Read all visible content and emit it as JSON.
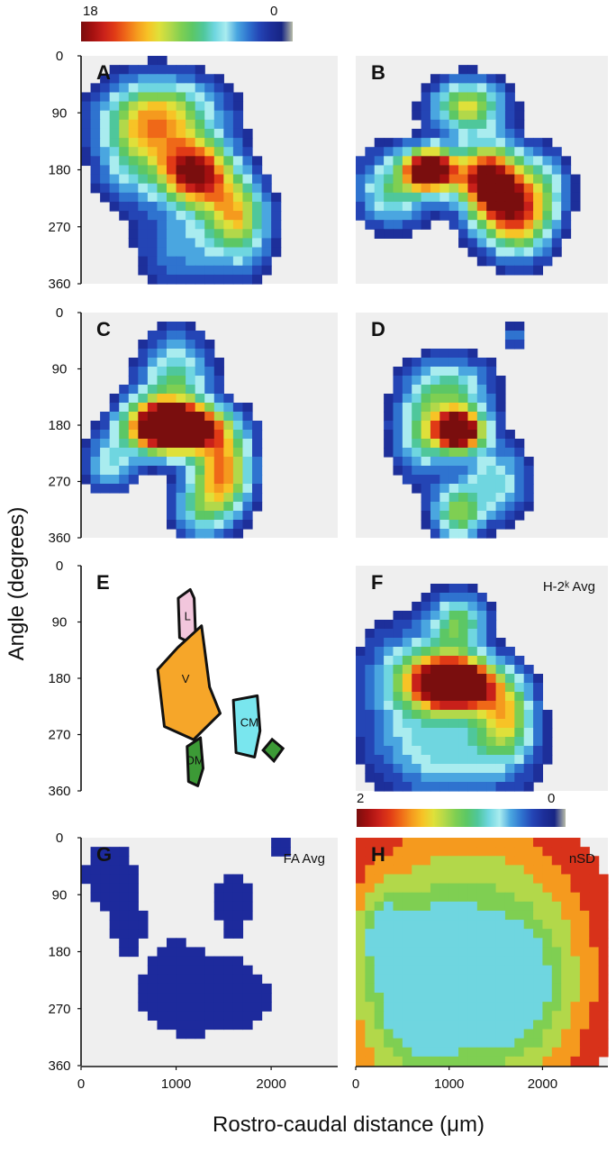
{
  "chart_data": {
    "type": "heatmap",
    "xlabel": "Rostro-caudal distance (μm)",
    "ylabel": "Angle (degrees)",
    "colorbars": [
      {
        "max_label": "18",
        "min_label": "0",
        "min": 0,
        "max": 18
      },
      {
        "max_label": "2",
        "min_label": "0",
        "min": 0,
        "max": 2
      }
    ],
    "xticks": [
      "0",
      "1000",
      "2000"
    ],
    "yticks": [
      "0",
      "90",
      "180",
      "270",
      "360"
    ],
    "xlim": [
      0,
      2700
    ],
    "ylim": [
      0,
      360
    ],
    "palette": [
      "#7a0e0e",
      "#a31010",
      "#c8201a",
      "#e03a16",
      "#ef6818",
      "#f59a1e",
      "#f7c326",
      "#dfe03a",
      "#b2d84a",
      "#7fcf52",
      "#5cc765",
      "#4fc79b",
      "#6fd6e0",
      "#a9ecef",
      "#4aa6e0",
      "#2f73cf",
      "#2445b5",
      "#1d2f9a",
      "#172584",
      "#b8bca8"
    ],
    "panels": [
      {
        "id": "A",
        "peak_x": 1200,
        "peak_y": 185,
        "peak": 18,
        "blobs": [
          [
            1200,
            185,
            18,
            260,
            35
          ],
          [
            700,
            120,
            8,
            330,
            45
          ],
          [
            900,
            90,
            7,
            420,
            40
          ],
          [
            1600,
            240,
            9,
            220,
            35
          ],
          [
            1700,
            290,
            5,
            200,
            40
          ],
          [
            1100,
            300,
            4,
            330,
            45
          ],
          [
            500,
            190,
            3,
            230,
            40
          ]
        ]
      },
      {
        "id": "B",
        "peak_x": 800,
        "peak_y": 180,
        "peak": 10,
        "blobs": [
          [
            800,
            180,
            13,
            180,
            22
          ],
          [
            1400,
            190,
            9,
            240,
            35
          ],
          [
            1600,
            240,
            7,
            250,
            40
          ],
          [
            1200,
            80,
            6,
            260,
            28
          ],
          [
            400,
            210,
            4,
            260,
            40
          ],
          [
            1800,
            270,
            3,
            220,
            40
          ],
          [
            2000,
            210,
            3,
            200,
            40
          ]
        ]
      },
      {
        "id": "C",
        "peak_x": 1100,
        "peak_y": 185,
        "peak": 10,
        "blobs": [
          [
            1100,
            185,
            12,
            300,
            25
          ],
          [
            800,
            180,
            8,
            250,
            30
          ],
          [
            1500,
            250,
            7,
            200,
            40
          ],
          [
            1000,
            100,
            4,
            250,
            45
          ],
          [
            1300,
            310,
            4,
            220,
            35
          ],
          [
            300,
            240,
            3,
            180,
            30
          ]
        ]
      },
      {
        "id": "D",
        "peak_x": 1100,
        "peak_y": 190,
        "peak": 12,
        "blobs": [
          [
            1100,
            190,
            15,
            180,
            22
          ],
          [
            1000,
            130,
            5,
            300,
            40
          ],
          [
            1500,
            270,
            4,
            240,
            40
          ],
          [
            1100,
            320,
            6,
            180,
            30
          ],
          [
            700,
            200,
            4,
            200,
            45
          ],
          [
            1700,
            40,
            2,
            90,
            15
          ]
        ]
      },
      {
        "id": "F",
        "annotation": "H-2ᵏ Avg",
        "peak_x": 1100,
        "peak_y": 190,
        "peak": 14,
        "blobs": [
          [
            1100,
            190,
            16,
            260,
            25
          ],
          [
            900,
            180,
            8,
            340,
            35
          ],
          [
            1600,
            240,
            8,
            200,
            45
          ],
          [
            1100,
            90,
            6,
            200,
            30
          ],
          [
            1100,
            300,
            4,
            500,
            50
          ],
          [
            600,
            200,
            3,
            400,
            80
          ]
        ]
      },
      {
        "id": "G",
        "annotation": "FA Avg",
        "peak": 1,
        "blobs": [
          [
            300,
            60,
            1,
            220,
            45
          ],
          [
            1300,
            250,
            1,
            600,
            50
          ],
          [
            1600,
            100,
            1,
            150,
            40
          ],
          [
            2100,
            20,
            1,
            80,
            15
          ],
          [
            500,
            140,
            1,
            120,
            30
          ],
          [
            1000,
            220,
            1,
            150,
            40
          ]
        ]
      },
      {
        "id": "H",
        "annotation": "nSD",
        "peak": 2,
        "blobs": [
          [
            1200,
            200,
            2,
            700,
            120
          ],
          [
            700,
            250,
            2,
            350,
            80
          ],
          [
            300,
            150,
            1.5,
            150,
            40
          ],
          [
            1700,
            240,
            1.5,
            350,
            70
          ]
        ]
      }
    ],
    "region_map": {
      "id": "E",
      "regions": [
        {
          "label": "L",
          "color": "#f2c6dc",
          "x": 1120,
          "y": 80
        },
        {
          "label": "V",
          "color": "#f6a629",
          "x": 1100,
          "y": 180
        },
        {
          "label": "CM",
          "color": "#79e6ee",
          "x": 1770,
          "y": 250
        },
        {
          "label": "DM",
          "color": "#3c9a36",
          "x": 1200,
          "y": 310
        }
      ]
    }
  }
}
